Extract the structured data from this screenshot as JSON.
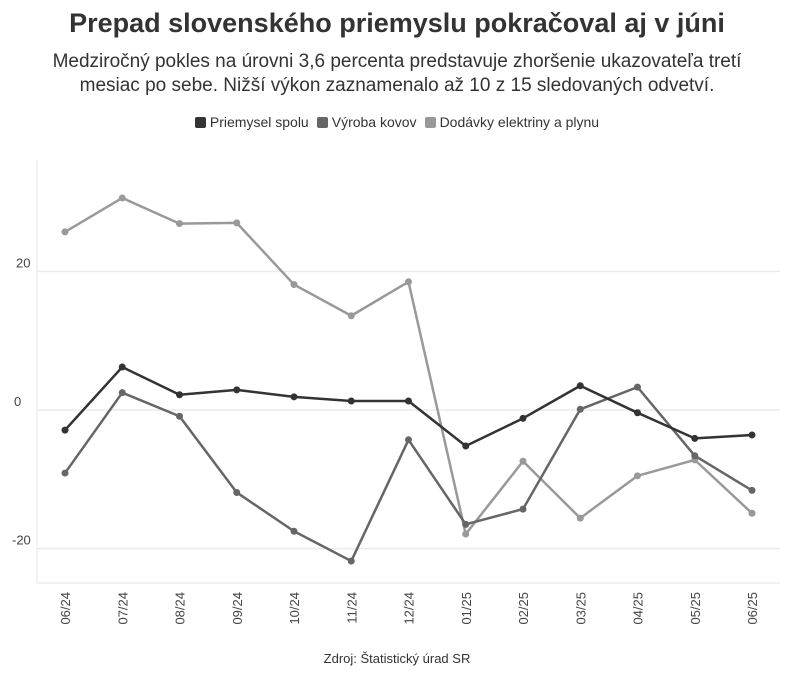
{
  "title": "Prepad slovenského priemyslu pokračoval aj v júni",
  "subtitle": "Medziročný pokles na úrovni 3,6 percenta predstavuje zhoršenie ukazovateľa tretí mesiac po sebe. Nižší výkon zaznamenalo až 10 z 15 sledovaných odvetví.",
  "source": "Zdroj: Štatistický úrad SR",
  "chart_data": {
    "type": "line",
    "categories": [
      "06/24",
      "07/24",
      "08/24",
      "09/24",
      "10/24",
      "11/24",
      "12/24",
      "01/25",
      "02/25",
      "03/25",
      "04/25",
      "05/25",
      "06/25"
    ],
    "yticks": [
      -20,
      0,
      20
    ],
    "ylim": [
      -25,
      36
    ],
    "grid": true,
    "legend": "top",
    "series": [
      {
        "name": "Priemysel spolu",
        "color": "#333333",
        "values": [
          -2.9,
          6.2,
          2.2,
          2.9,
          1.9,
          1.3,
          1.3,
          -5.2,
          -1.2,
          3.5,
          -0.4,
          -4.1,
          -3.6
        ]
      },
      {
        "name": "Výroba kovov",
        "color": "#666666",
        "values": [
          -9.1,
          2.5,
          -0.9,
          -11.9,
          -17.5,
          -21.8,
          -4.3,
          -16.5,
          -14.3,
          0.1,
          3.3,
          -6.6,
          -11.6
        ]
      },
      {
        "name": "Dodávky elektriny a plynu",
        "color": "#999999",
        "values": [
          25.7,
          30.6,
          26.9,
          27.0,
          18.1,
          13.6,
          18.5,
          -17.9,
          -7.4,
          -15.6,
          -9.5,
          -7.2,
          -14.9
        ]
      }
    ]
  }
}
